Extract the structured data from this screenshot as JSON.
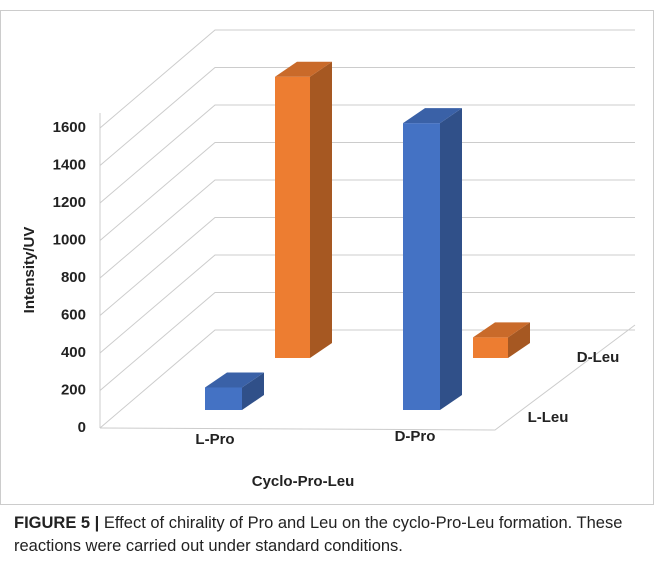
{
  "chart_data": {
    "type": "bar3d",
    "y_label": "Intensity/UV",
    "x_label": "Cyclo-Pro-Leu",
    "categories": [
      "L-Pro",
      "D-Pro"
    ],
    "series": [
      {
        "name": "L-Leu",
        "color": "#4472c4",
        "values": [
          120,
          1530
        ]
      },
      {
        "name": "D-Leu",
        "color": "#ed7d31",
        "values": [
          1500,
          110
        ]
      }
    ],
    "ylim": [
      0,
      1600
    ],
    "yticks": [
      0,
      200,
      400,
      600,
      800,
      1000,
      1200,
      1400,
      1600
    ],
    "grid": true
  },
  "caption": {
    "label": "FIGURE 5 |",
    "text": "Effect of chirality of Pro and Leu on the cyclo-Pro-Leu formation. These reactions were carried out under standard conditions."
  }
}
